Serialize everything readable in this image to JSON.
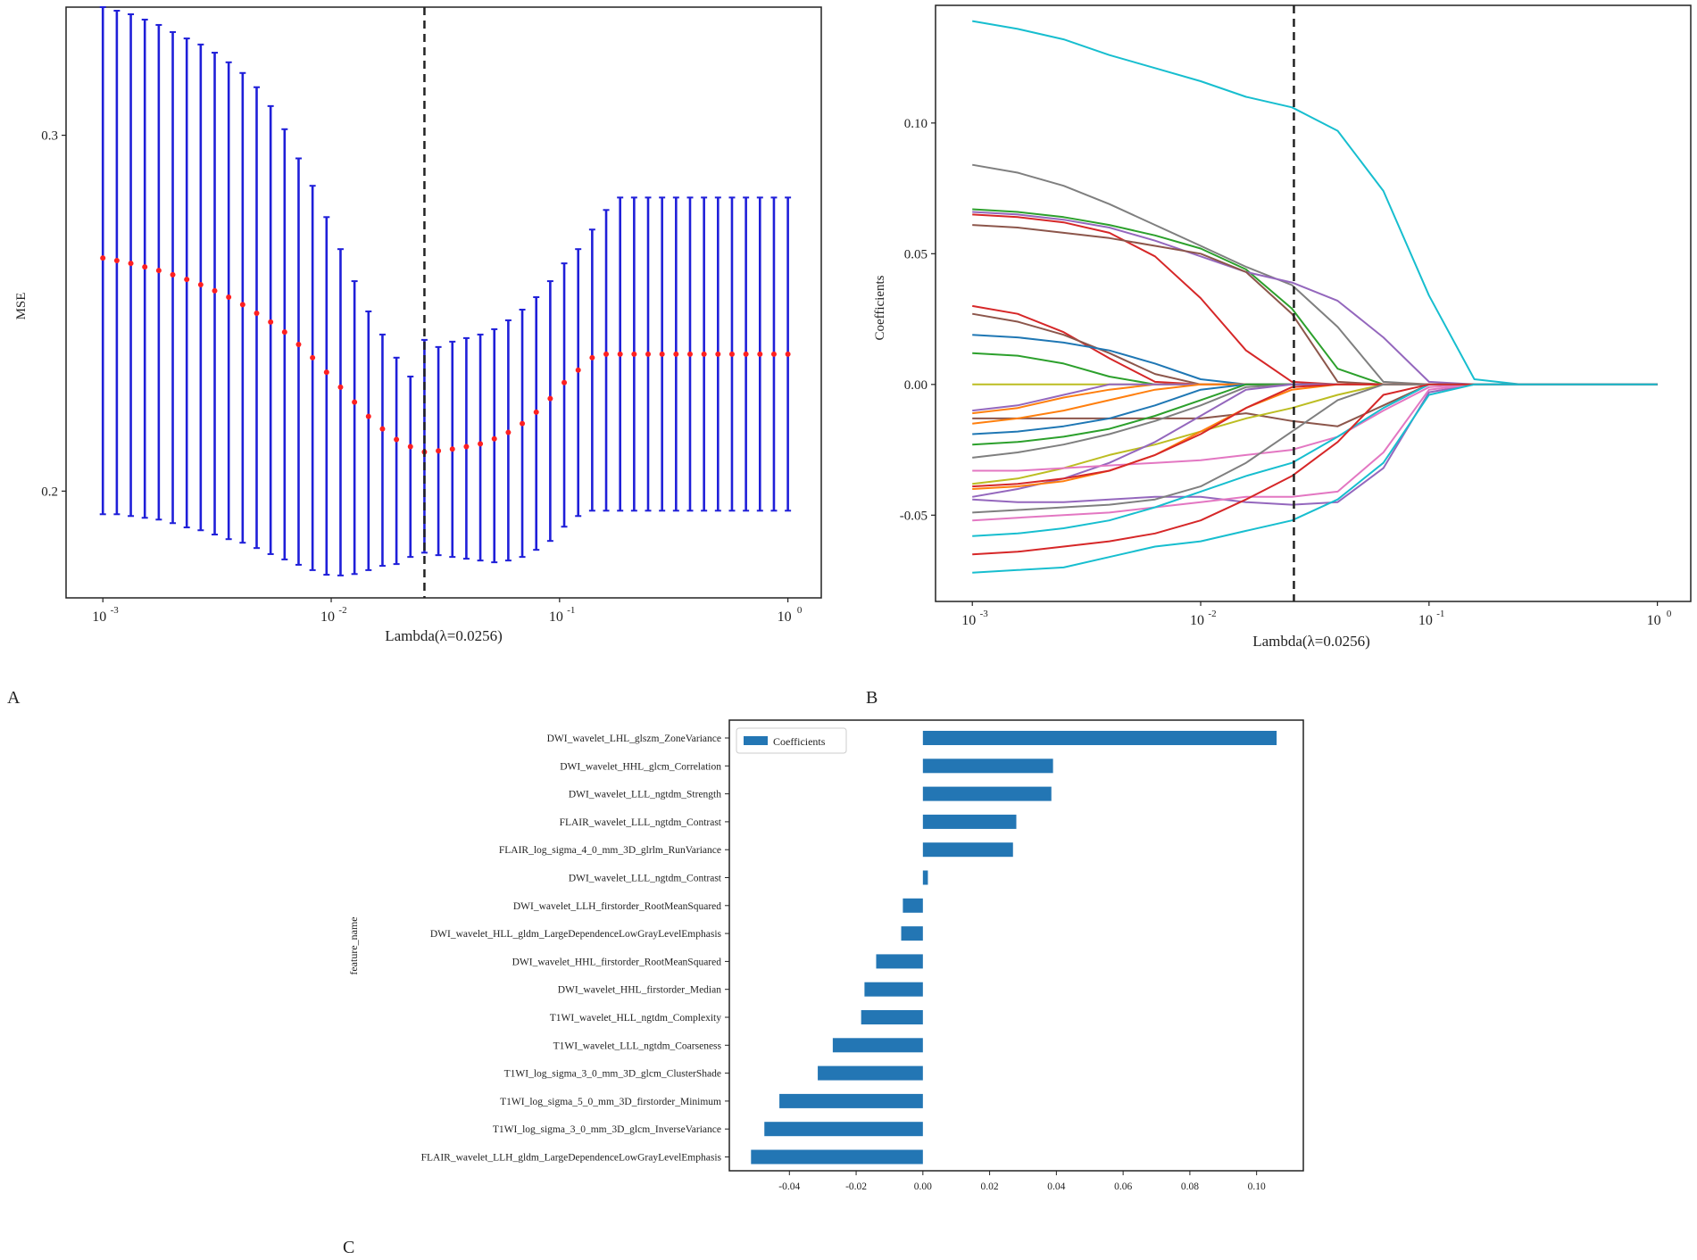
{
  "colors": {
    "errorbar": "#1f1fd9",
    "mean_point": "#ff2020",
    "bar": "#2376b4",
    "axis": "#222222",
    "lambda_line": "#222222"
  },
  "chart_data": [
    {
      "panel_label": "A",
      "type": "scatter",
      "title": "",
      "xlabel": "Lambda(λ=0.0256)",
      "ylabel": "MSE",
      "xscale": "log",
      "xlim": [
        0.00069,
        1.4
      ],
      "ylim": [
        0.17,
        0.336
      ],
      "xticks": [
        {
          "value": 0.001,
          "base": "10",
          "exp": "-3"
        },
        {
          "value": 0.01,
          "base": "10",
          "exp": "-2"
        },
        {
          "value": 0.1,
          "base": "10",
          "exp": "-1"
        },
        {
          "value": 1,
          "base": "10",
          "exp": "0"
        }
      ],
      "yticks": [
        {
          "value": 0.2,
          "label": "0.2"
        },
        {
          "value": 0.3,
          "label": "0.3"
        }
      ],
      "selected_lambda": 0.0256,
      "log10_lambda_start": -3,
      "log10_lambda_end": 0,
      "points": 50,
      "mse_mean": [
        0.2655,
        0.2648,
        0.264,
        0.263,
        0.262,
        0.2608,
        0.2595,
        0.258,
        0.2563,
        0.2545,
        0.2524,
        0.25,
        0.2475,
        0.2447,
        0.2412,
        0.2375,
        0.2334,
        0.2292,
        0.225,
        0.221,
        0.2175,
        0.2145,
        0.2125,
        0.211,
        0.2113,
        0.2118,
        0.2125,
        0.2133,
        0.2147,
        0.2165,
        0.219,
        0.2222,
        0.226,
        0.2305,
        0.234,
        0.2375,
        0.2385,
        0.2385,
        0.2385,
        0.2385,
        0.2385,
        0.2385,
        0.2385,
        0.2385,
        0.2385,
        0.2385,
        0.2385,
        0.2385,
        0.2385,
        0.2385
      ],
      "mse_upper": [
        0.336,
        0.335,
        0.334,
        0.3325,
        0.331,
        0.329,
        0.3272,
        0.3255,
        0.3232,
        0.3205,
        0.3175,
        0.3135,
        0.3082,
        0.3017,
        0.2935,
        0.2858,
        0.277,
        0.268,
        0.259,
        0.2505,
        0.244,
        0.2375,
        0.2322,
        0.2425,
        0.2405,
        0.242,
        0.243,
        0.244,
        0.2455,
        0.248,
        0.251,
        0.2545,
        0.259,
        0.264,
        0.268,
        0.2735,
        0.279,
        0.2825,
        0.2825,
        0.2825,
        0.2825,
        0.2825,
        0.2825,
        0.2825,
        0.2825,
        0.2825,
        0.2825,
        0.2825,
        0.2825,
        0.2825
      ],
      "mse_lower": [
        0.1935,
        0.1935,
        0.193,
        0.1925,
        0.192,
        0.191,
        0.1898,
        0.189,
        0.1878,
        0.1865,
        0.1855,
        0.184,
        0.1823,
        0.1808,
        0.1793,
        0.1778,
        0.1765,
        0.1763,
        0.1767,
        0.1778,
        0.179,
        0.1795,
        0.1815,
        0.1827,
        0.182,
        0.1815,
        0.181,
        0.1805,
        0.18,
        0.1805,
        0.1815,
        0.1835,
        0.186,
        0.19,
        0.193,
        0.1945,
        0.1945,
        0.1945,
        0.1945,
        0.1945,
        0.1945,
        0.1945,
        0.1945,
        0.1945,
        0.1945,
        0.1945,
        0.1945,
        0.1945,
        0.1945,
        0.1945
      ]
    },
    {
      "panel_label": "B",
      "type": "line",
      "title": "",
      "xlabel": "Lambda(λ=0.0256)",
      "ylabel": "Coefficients",
      "xscale": "log",
      "xlim": [
        0.00069,
        1.4
      ],
      "ylim": [
        -0.083,
        0.145
      ],
      "xticks": [
        {
          "value": 0.001,
          "base": "10",
          "exp": "-3"
        },
        {
          "value": 0.01,
          "base": "10",
          "exp": "-2"
        },
        {
          "value": 0.1,
          "base": "10",
          "exp": "-1"
        },
        {
          "value": 1,
          "base": "10",
          "exp": "0"
        }
      ],
      "yticks": [
        {
          "value": 0.1,
          "label": "0.10"
        },
        {
          "value": 0.05,
          "label": "0.05"
        },
        {
          "value": 0.0,
          "label": "0.00"
        },
        {
          "value": -0.05,
          "label": "-0.05"
        }
      ],
      "selected_lambda": 0.0256,
      "x": [
        0.001,
        0.00158,
        0.00251,
        0.00398,
        0.00631,
        0.01,
        0.0158,
        0.0251,
        0.0398,
        0.0631,
        0.1,
        0.158,
        0.251,
        0.398,
        0.631,
        1
      ],
      "series": [
        {
          "name": "path 1",
          "color": "#17becf",
          "values": [
            0.139,
            0.136,
            0.132,
            0.126,
            0.121,
            0.116,
            0.11,
            0.106,
            0.097,
            0.074,
            0.034,
            0.002,
            0,
            0,
            0,
            0
          ]
        },
        {
          "name": "path 2",
          "color": "#7f7f7f",
          "values": [
            0.084,
            0.081,
            0.076,
            0.069,
            0.061,
            0.053,
            0.045,
            0.038,
            0.022,
            0.001,
            0,
            0,
            0,
            0,
            0,
            0
          ]
        },
        {
          "name": "path 3",
          "color": "#2ca02c",
          "values": [
            0.067,
            0.066,
            0.064,
            0.061,
            0.057,
            0.052,
            0.044,
            0.029,
            0.006,
            0,
            0,
            0,
            0,
            0,
            0,
            0
          ]
        },
        {
          "name": "path 4",
          "color": "#9467bd",
          "values": [
            0.066,
            0.065,
            0.063,
            0.06,
            0.055,
            0.049,
            0.043,
            0.039,
            0.032,
            0.018,
            0.001,
            0,
            0,
            0,
            0,
            0
          ]
        },
        {
          "name": "path 5",
          "color": "#d62728",
          "values": [
            0.065,
            0.064,
            0.062,
            0.058,
            0.049,
            0.033,
            0.013,
            0.001,
            0,
            0,
            0,
            0,
            0,
            0,
            0,
            0
          ]
        },
        {
          "name": "path 6",
          "color": "#8c564b",
          "values": [
            0.061,
            0.06,
            0.058,
            0.056,
            0.053,
            0.05,
            0.043,
            0.027,
            0.001,
            0,
            0,
            0,
            0,
            0,
            0,
            0
          ]
        },
        {
          "name": "path 7",
          "color": "#d62728",
          "values": [
            0.03,
            0.027,
            0.02,
            0.01,
            0.001,
            0,
            0,
            0,
            0,
            0,
            0,
            0,
            0,
            0,
            0,
            0
          ]
        },
        {
          "name": "path 8",
          "color": "#8c564b",
          "values": [
            0.027,
            0.024,
            0.019,
            0.012,
            0.004,
            0,
            0,
            0,
            0,
            0,
            0,
            0,
            0,
            0,
            0,
            0
          ]
        },
        {
          "name": "path 9",
          "color": "#1f77b4",
          "values": [
            0.019,
            0.018,
            0.016,
            0.013,
            0.008,
            0.002,
            0,
            0,
            0,
            0,
            0,
            0,
            0,
            0,
            0,
            0
          ]
        },
        {
          "name": "path 10",
          "color": "#2ca02c",
          "values": [
            0.012,
            0.011,
            0.008,
            0.003,
            0,
            0,
            0,
            0,
            0,
            0,
            0,
            0,
            0,
            0,
            0,
            0
          ]
        },
        {
          "name": "path 11",
          "color": "#bcbd22",
          "values": [
            0,
            0,
            0,
            0,
            0,
            0,
            0,
            0,
            0,
            0,
            0,
            0,
            0,
            0,
            0,
            0
          ]
        },
        {
          "name": "path 12",
          "color": "#ff7f0e",
          "values": [
            -0.011,
            -0.009,
            -0.005,
            -0.002,
            0,
            0,
            0,
            0,
            0,
            0,
            0,
            0,
            0,
            0,
            0,
            0
          ]
        },
        {
          "name": "path 13",
          "color": "#9467bd",
          "values": [
            -0.01,
            -0.008,
            -0.004,
            0,
            0,
            0,
            0,
            0,
            0,
            0,
            0,
            0,
            0,
            0,
            0,
            0
          ]
        },
        {
          "name": "path 14",
          "color": "#8c564b",
          "values": [
            -0.013,
            -0.013,
            -0.013,
            -0.013,
            -0.013,
            -0.013,
            -0.011,
            -0.014,
            -0.016,
            -0.008,
            0,
            0,
            0,
            0,
            0,
            0
          ]
        },
        {
          "name": "path 15",
          "color": "#ff7f0e",
          "values": [
            -0.015,
            -0.013,
            -0.01,
            -0.006,
            -0.002,
            0,
            0,
            0,
            0,
            0,
            0,
            0,
            0,
            0,
            0,
            0
          ]
        },
        {
          "name": "path 16",
          "color": "#1f77b4",
          "values": [
            -0.019,
            -0.018,
            -0.016,
            -0.013,
            -0.008,
            -0.002,
            0,
            0,
            0,
            0,
            0,
            0,
            0,
            0,
            0,
            0
          ]
        },
        {
          "name": "path 17",
          "color": "#2ca02c",
          "values": [
            -0.023,
            -0.022,
            -0.02,
            -0.017,
            -0.012,
            -0.006,
            0,
            0,
            0,
            0,
            0,
            0,
            0,
            0,
            0,
            0
          ]
        },
        {
          "name": "path 18",
          "color": "#7f7f7f",
          "values": [
            -0.028,
            -0.026,
            -0.023,
            -0.019,
            -0.014,
            -0.008,
            -0.001,
            0,
            0,
            0,
            0,
            0,
            0,
            0,
            0,
            0
          ]
        },
        {
          "name": "path 19",
          "color": "#bcbd22",
          "values": [
            -0.038,
            -0.036,
            -0.032,
            -0.027,
            -0.023,
            -0.018,
            -0.013,
            -0.009,
            -0.004,
            0,
            0,
            0,
            0,
            0,
            0,
            0
          ]
        },
        {
          "name": "path 20",
          "color": "#9467bd",
          "values": [
            -0.043,
            -0.04,
            -0.036,
            -0.03,
            -0.022,
            -0.012,
            -0.002,
            0,
            0,
            0,
            0,
            0,
            0,
            0,
            0,
            0
          ]
        },
        {
          "name": "path 21",
          "color": "#e377c2",
          "values": [
            -0.033,
            -0.033,
            -0.032,
            -0.031,
            -0.03,
            -0.029,
            -0.027,
            -0.025,
            -0.02,
            -0.01,
            -0.001,
            0,
            0,
            0,
            0,
            0
          ]
        },
        {
          "name": "path 22",
          "color": "#ff7f0e",
          "values": [
            -0.04,
            -0.039,
            -0.037,
            -0.033,
            -0.027,
            -0.018,
            -0.009,
            -0.002,
            0,
            0,
            0,
            0,
            0,
            0,
            0,
            0
          ]
        },
        {
          "name": "path 23",
          "color": "#d62728",
          "values": [
            -0.039,
            -0.038,
            -0.036,
            -0.033,
            -0.027,
            -0.019,
            -0.009,
            -0.001,
            0,
            0,
            0,
            0,
            0,
            0,
            0,
            0
          ]
        },
        {
          "name": "path 24",
          "color": "#9467bd",
          "values": [
            -0.044,
            -0.045,
            -0.045,
            -0.044,
            -0.043,
            -0.043,
            -0.045,
            -0.046,
            -0.045,
            -0.032,
            -0.003,
            0,
            0,
            0,
            0,
            0
          ]
        },
        {
          "name": "path 25",
          "color": "#e377c2",
          "values": [
            -0.052,
            -0.051,
            -0.05,
            -0.049,
            -0.047,
            -0.045,
            -0.043,
            -0.043,
            -0.041,
            -0.026,
            -0.002,
            0,
            0,
            0,
            0,
            0
          ]
        },
        {
          "name": "path 26",
          "color": "#7f7f7f",
          "values": [
            -0.049,
            -0.048,
            -0.047,
            -0.046,
            -0.044,
            -0.039,
            -0.03,
            -0.018,
            -0.006,
            0,
            0,
            0,
            0,
            0,
            0,
            0
          ]
        },
        {
          "name": "path 27",
          "color": "#17becf",
          "values": [
            -0.058,
            -0.057,
            -0.055,
            -0.052,
            -0.047,
            -0.041,
            -0.035,
            -0.03,
            -0.02,
            -0.009,
            0,
            0,
            0,
            0,
            0,
            0
          ]
        },
        {
          "name": "path 28",
          "color": "#d62728",
          "values": [
            -0.065,
            -0.064,
            -0.062,
            -0.06,
            -0.057,
            -0.052,
            -0.044,
            -0.035,
            -0.022,
            -0.004,
            0,
            0,
            0,
            0,
            0,
            0
          ]
        },
        {
          "name": "path 29",
          "color": "#17becf",
          "values": [
            -0.072,
            -0.071,
            -0.07,
            -0.066,
            -0.062,
            -0.06,
            -0.056,
            -0.052,
            -0.044,
            -0.03,
            -0.004,
            0,
            0,
            0,
            0,
            0
          ]
        }
      ]
    },
    {
      "panel_label": "C",
      "type": "bar",
      "orientation": "horizontal",
      "title": "",
      "xlabel": "",
      "ylabel": "feature_name",
      "legend": [
        "Coefficients"
      ],
      "legend_position": "top-left",
      "xlim": [
        -0.058,
        0.114
      ],
      "xticks": [
        {
          "value": -0.04,
          "label": "-0.04"
        },
        {
          "value": -0.02,
          "label": "-0.02"
        },
        {
          "value": 0.0,
          "label": "0.00"
        },
        {
          "value": 0.02,
          "label": "0.02"
        },
        {
          "value": 0.04,
          "label": "0.04"
        },
        {
          "value": 0.06,
          "label": "0.06"
        },
        {
          "value": 0.08,
          "label": "0.08"
        },
        {
          "value": 0.1,
          "label": "0.10"
        }
      ],
      "categories": [
        "DWI_wavelet_LHL_glszm_ZoneVariance",
        "DWI_wavelet_HHL_glcm_Correlation",
        "DWI_wavelet_LLL_ngtdm_Strength",
        "FLAIR_wavelet_LLL_ngtdm_Contrast",
        "FLAIR_log_sigma_4_0_mm_3D_glrlm_RunVariance",
        "DWI_wavelet_LLL_ngtdm_Contrast",
        "DWI_wavelet_LLH_firstorder_RootMeanSquared",
        "DWI_wavelet_HLL_gldm_LargeDependenceLowGrayLevelEmphasis",
        "DWI_wavelet_HHL_firstorder_RootMeanSquared",
        "DWI_wavelet_HHL_firstorder_Median",
        "T1WI_wavelet_HLL_ngtdm_Complexity",
        "T1WI_wavelet_LLL_ngtdm_Coarseness",
        "T1WI_log_sigma_3_0_mm_3D_glcm_ClusterShade",
        "T1WI_log_sigma_5_0_mm_3D_firstorder_Minimum",
        "T1WI_log_sigma_3_0_mm_3D_glcm_InverseVariance",
        "FLAIR_wavelet_LLH_gldm_LargeDependenceLowGrayLevelEmphasis"
      ],
      "values": [
        0.106,
        0.039,
        0.0385,
        0.028,
        0.027,
        0.0015,
        -0.006,
        -0.0065,
        -0.014,
        -0.0175,
        -0.0185,
        -0.027,
        -0.0315,
        -0.043,
        -0.0475,
        -0.0515
      ]
    }
  ]
}
